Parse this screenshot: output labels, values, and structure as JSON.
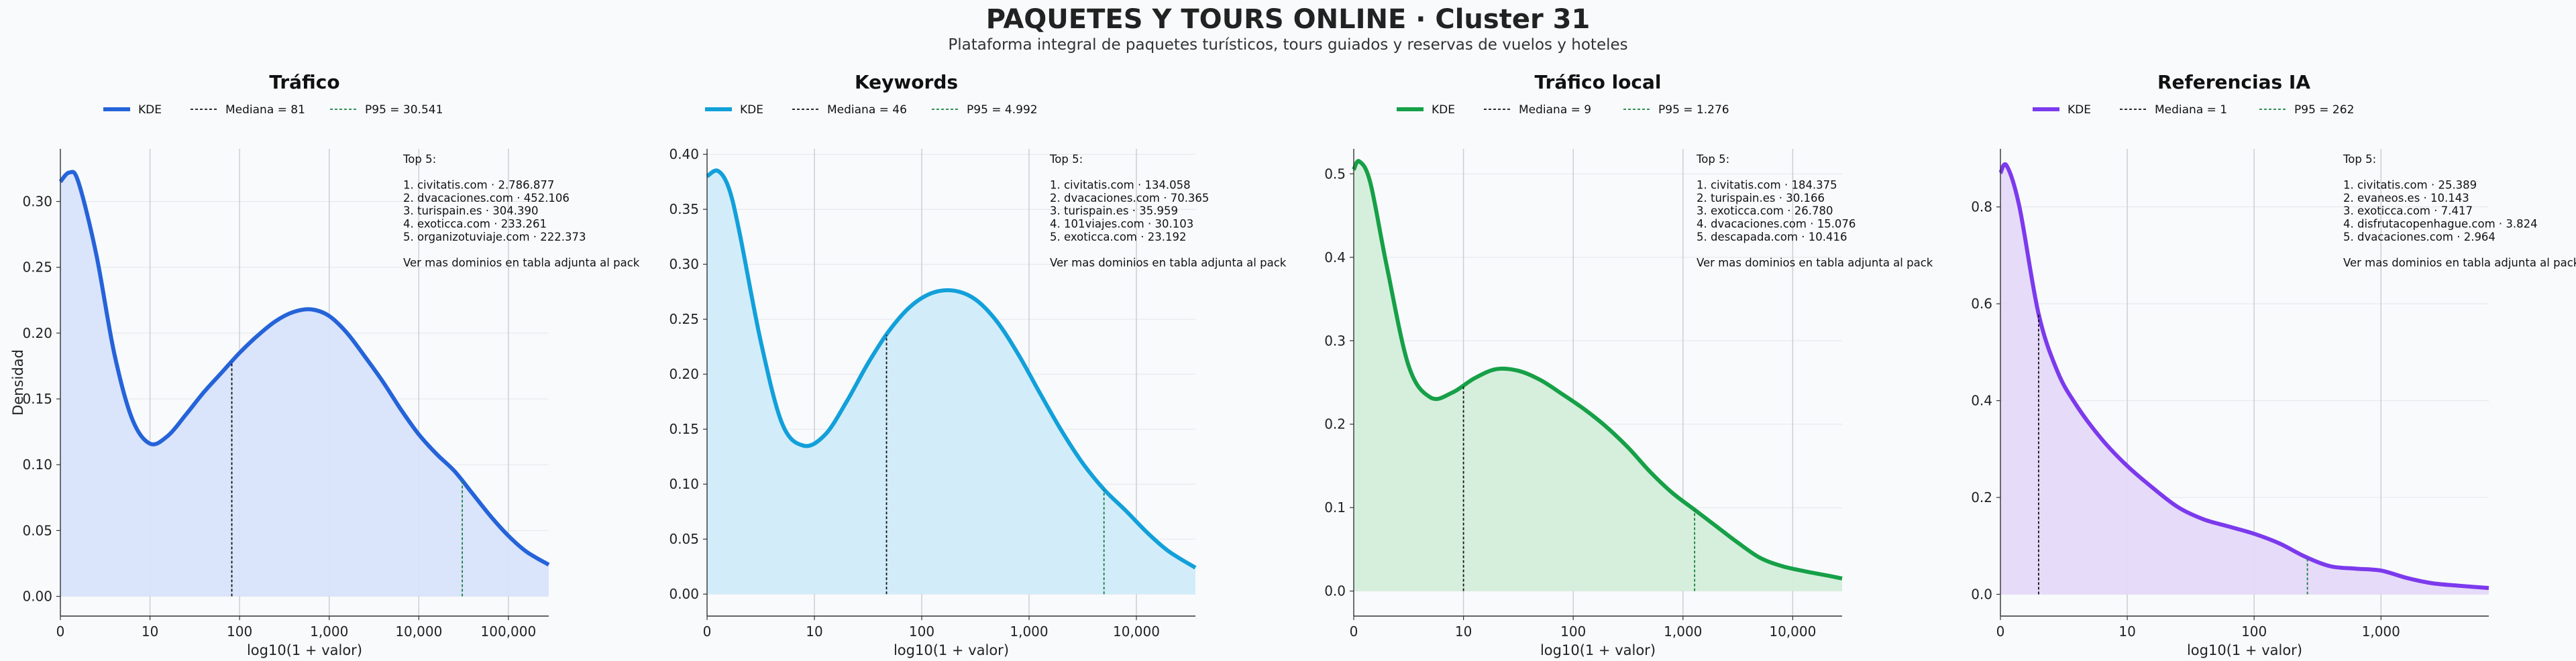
{
  "title": "PAQUETES Y TOURS ONLINE · Cluster 31",
  "subtitle": "Plataforma integral de paquetes turísticos, tours guiados y reservas de vuelos y hoteles",
  "colors": {
    "trafico": "#2563d9",
    "keywords": "#12a0da",
    "trafico_local": "#16a047",
    "referencias": "#7c3aed",
    "p95": "#16803a",
    "mediana": "#111111"
  },
  "chart_data": [
    {
      "type": "area",
      "title": "Tráfico",
      "color": "#2563d9",
      "fill": "#d8e3fb",
      "xlabel": "log10(1 + valor)",
      "ylabel": "Densidad",
      "xlim": [
        0,
        5.45
      ],
      "ylim": [
        -0.015,
        0.34
      ],
      "xticks": [
        0,
        1,
        2,
        3,
        4,
        5
      ],
      "xticklabels": [
        "0",
        "10",
        "100",
        "1,000",
        "10,000",
        "100,000"
      ],
      "yticks": [
        0,
        0.05,
        0.1,
        0.15,
        0.2,
        0.25,
        0.3
      ],
      "yticklabels": [
        "0.00",
        "0.05",
        "0.10",
        "0.15",
        "0.20",
        "0.25",
        "0.30"
      ],
      "legend": [
        "KDE",
        "Mediana = 81",
        "P95 = 30.541"
      ],
      "median_x": 1.913,
      "p95_x": 4.485,
      "x": [
        0,
        0.1,
        0.2,
        0.4,
        0.6,
        0.8,
        1.0,
        1.2,
        1.4,
        1.6,
        1.8,
        2.0,
        2.2,
        2.4,
        2.6,
        2.8,
        3.0,
        3.2,
        3.4,
        3.6,
        3.8,
        4.0,
        4.2,
        4.4,
        4.6,
        4.8,
        5.0,
        5.2,
        5.45
      ],
      "y": [
        0.315,
        0.322,
        0.315,
        0.26,
        0.185,
        0.135,
        0.116,
        0.122,
        0.138,
        0.155,
        0.17,
        0.185,
        0.198,
        0.209,
        0.216,
        0.218,
        0.213,
        0.2,
        0.182,
        0.163,
        0.142,
        0.123,
        0.108,
        0.095,
        0.078,
        0.061,
        0.046,
        0.034,
        0.024
      ],
      "annotation": [
        "Top 5:",
        "",
        "1. civitatis.com · 2.786.877",
        "2. dvacaciones.com · 452.106",
        "3. turispain.es · 304.390",
        "4. exoticca.com · 233.261",
        "5. organizotuviaje.com · 222.373",
        "",
        "Ver mas dominios en tabla adjunta al pack"
      ]
    },
    {
      "type": "area",
      "title": "Keywords",
      "color": "#12a0da",
      "fill": "#d0ecf9",
      "xlabel": "log10(1 + valor)",
      "ylabel": "",
      "xlim": [
        0,
        4.55
      ],
      "ylim": [
        -0.02,
        0.405
      ],
      "xticks": [
        0,
        1,
        2,
        3,
        4
      ],
      "xticklabels": [
        "0",
        "10",
        "100",
        "1,000",
        "10,000"
      ],
      "yticks": [
        0,
        0.05,
        0.1,
        0.15,
        0.2,
        0.25,
        0.3,
        0.35,
        0.4
      ],
      "yticklabels": [
        "0.00",
        "0.05",
        "0.10",
        "0.15",
        "0.20",
        "0.25",
        "0.30",
        "0.35",
        "0.40"
      ],
      "legend": [
        "KDE",
        "Mediana = 46",
        "P95 = 4.992"
      ],
      "median_x": 1.672,
      "p95_x": 3.698,
      "x": [
        0,
        0.1,
        0.2,
        0.3,
        0.5,
        0.7,
        0.9,
        1.1,
        1.3,
        1.5,
        1.7,
        1.9,
        2.1,
        2.3,
        2.5,
        2.7,
        2.9,
        3.1,
        3.3,
        3.5,
        3.7,
        3.9,
        4.1,
        4.3,
        4.55
      ],
      "y": [
        0.38,
        0.385,
        0.37,
        0.33,
        0.23,
        0.155,
        0.135,
        0.145,
        0.175,
        0.21,
        0.24,
        0.262,
        0.274,
        0.276,
        0.268,
        0.248,
        0.218,
        0.183,
        0.149,
        0.119,
        0.095,
        0.076,
        0.056,
        0.039,
        0.024
      ],
      "annotation": [
        "Top 5:",
        "",
        "1. civitatis.com · 134.058",
        "2. dvacaciones.com · 70.365",
        "3. turispain.es · 35.959",
        "4. 101viajes.com · 30.103",
        "5. exoticca.com · 23.192",
        "",
        "Ver mas dominios en tabla adjunta al pack"
      ]
    },
    {
      "type": "area",
      "title": "Tráfico local",
      "color": "#16a047",
      "fill": "#d4eedb",
      "xlabel": "log10(1 + valor)",
      "ylabel": "",
      "xlim": [
        0,
        4.45
      ],
      "ylim": [
        -0.03,
        0.53
      ],
      "xticks": [
        0,
        1,
        2,
        3,
        4
      ],
      "xticklabels": [
        "0",
        "10",
        "100",
        "1,000",
        "10,000"
      ],
      "yticks": [
        0,
        0.1,
        0.2,
        0.3,
        0.4,
        0.5
      ],
      "yticklabels": [
        "0.0",
        "0.1",
        "0.2",
        "0.3",
        "0.4",
        "0.5"
      ],
      "legend": [
        "KDE",
        "Mediana = 9",
        "P95 = 1.276"
      ],
      "median_x": 1.0,
      "p95_x": 3.106,
      "x": [
        0,
        0.05,
        0.15,
        0.3,
        0.5,
        0.7,
        0.9,
        1.1,
        1.3,
        1.5,
        1.7,
        1.9,
        2.1,
        2.3,
        2.5,
        2.7,
        2.9,
        3.1,
        3.3,
        3.5,
        3.7,
        3.9,
        4.1,
        4.3,
        4.45
      ],
      "y": [
        0.505,
        0.515,
        0.49,
        0.39,
        0.27,
        0.232,
        0.238,
        0.255,
        0.266,
        0.264,
        0.253,
        0.236,
        0.218,
        0.197,
        0.172,
        0.143,
        0.118,
        0.098,
        0.078,
        0.058,
        0.04,
        0.03,
        0.024,
        0.019,
        0.015
      ],
      "annotation": [
        "Top 5:",
        "",
        "1. civitatis.com · 184.375",
        "2. turispain.es · 30.166",
        "3. exoticca.com · 26.780",
        "4. dvacaciones.com · 15.076",
        "5. descapada.com · 10.416",
        "",
        "Ver mas dominios en tabla adjunta al pack"
      ]
    },
    {
      "type": "area",
      "title": "Referencias IA",
      "color": "#7c3aed",
      "fill": "#e5d9f9",
      "xlabel": "log10(1 + valor)",
      "ylabel": "",
      "xlim": [
        0,
        3.85
      ],
      "ylim": [
        -0.045,
        0.92
      ],
      "xticks": [
        0,
        1,
        2,
        3
      ],
      "xticklabels": [
        "0",
        "10",
        "100",
        "1,000"
      ],
      "yticks": [
        0,
        0.2,
        0.4,
        0.6,
        0.8
      ],
      "yticklabels": [
        "0.0",
        "0.2",
        "0.4",
        "0.6",
        "0.8"
      ],
      "legend": [
        "KDE",
        "Mediana = 1",
        "P95 = 262"
      ],
      "median_x": 0.301,
      "p95_x": 2.42,
      "x": [
        0,
        0.05,
        0.15,
        0.3,
        0.45,
        0.6,
        0.8,
        1.0,
        1.2,
        1.4,
        1.6,
        1.8,
        2.0,
        2.2,
        2.4,
        2.6,
        2.8,
        3.0,
        3.2,
        3.4,
        3.6,
        3.85
      ],
      "y": [
        0.87,
        0.885,
        0.8,
        0.58,
        0.46,
        0.39,
        0.32,
        0.265,
        0.22,
        0.18,
        0.155,
        0.14,
        0.125,
        0.105,
        0.078,
        0.058,
        0.053,
        0.049,
        0.034,
        0.023,
        0.018,
        0.013
      ],
      "annotation": [
        "Top 5:",
        "",
        "1. civitatis.com · 25.389",
        "2. evaneos.es · 10.143",
        "3. exoticca.com · 7.417",
        "4. disfrutacopenhague.com · 3.824",
        "5. dvacaciones.com · 2.964",
        "",
        "Ver mas dominios en tabla adjunta al pack"
      ]
    }
  ]
}
